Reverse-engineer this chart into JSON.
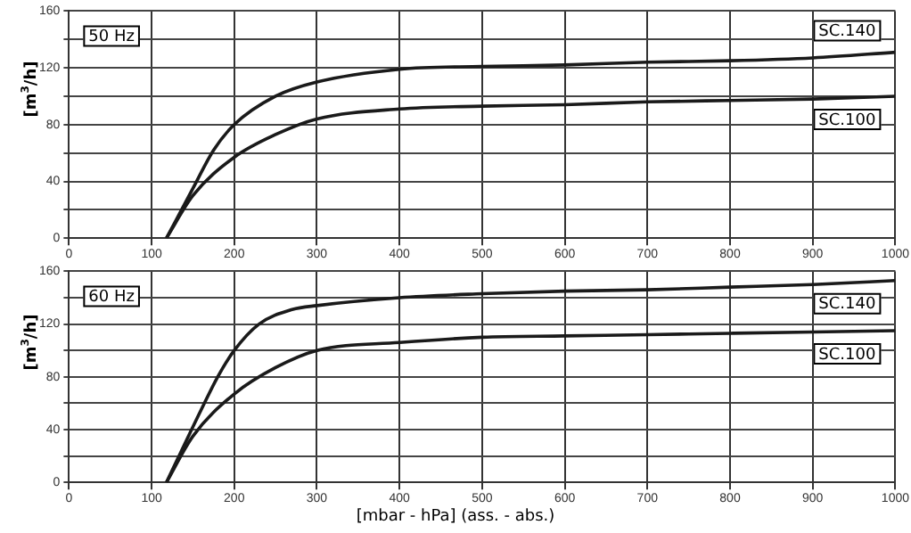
{
  "chart_data": [
    {
      "type": "line",
      "title": "50 Hz",
      "ylabel": "[m$^{3}$/h]",
      "xlim": [
        0,
        1000
      ],
      "xticks": [
        0,
        100,
        200,
        300,
        400,
        500,
        600,
        700,
        800,
        900,
        1000
      ],
      "ylim": [
        0,
        160
      ],
      "yticks": [
        0,
        {
          "value": 20,
          "label": null
        },
        40,
        {
          "value": 60,
          "label": null
        },
        80,
        {
          "value": 100,
          "label": null
        },
        120,
        {
          "value": 140,
          "label": null
        },
        160
      ],
      "grid": true,
      "legend": false,
      "marker": "none",
      "line_style": "solid",
      "series": [
        {
          "name": "SC.140",
          "color": "#1a1a1a",
          "x": [
            118,
            150,
            175,
            200,
            250,
            300,
            400,
            500,
            600,
            700,
            800,
            900,
            1000
          ],
          "values": [
            0,
            35,
            62,
            80,
            100,
            110,
            119,
            121,
            122,
            124,
            125,
            127,
            131
          ]
        },
        {
          "name": "SC.100",
          "color": "#1a1a1a",
          "x": [
            118,
            150,
            200,
            250,
            300,
            400,
            500,
            600,
            700,
            800,
            900,
            1000
          ],
          "values": [
            0,
            30,
            57,
            73,
            84,
            91,
            93,
            94,
            96,
            97,
            98,
            100
          ]
        }
      ]
    },
    {
      "type": "line",
      "title": "60 Hz",
      "ylabel": "[m$^{3}$/h]",
      "xlabel": "[mbar - hPa] (ass. - abs.)",
      "xlim": [
        0,
        1000
      ],
      "xticks": [
        0,
        100,
        200,
        300,
        400,
        500,
        600,
        700,
        800,
        900,
        1000
      ],
      "ylim": [
        0,
        160
      ],
      "yticks": [
        0,
        {
          "value": 20,
          "label": null
        },
        40,
        {
          "value": 60,
          "label": null
        },
        80,
        {
          "value": 100,
          "label": null
        },
        120,
        {
          "value": 140,
          "label": null
        },
        160
      ],
      "grid": true,
      "legend": false,
      "marker": "none",
      "line_style": "solid",
      "series": [
        {
          "name": "SC.140",
          "color": "#1a1a1a",
          "x": [
            118,
            160,
            180,
            200,
            230,
            270,
            300,
            400,
            500,
            600,
            700,
            800,
            900,
            1000
          ],
          "values": [
            0,
            55,
            80,
            100,
            120,
            131,
            134,
            140,
            143,
            145,
            146,
            148,
            150,
            153
          ]
        },
        {
          "name": "SC.100",
          "color": "#1a1a1a",
          "x": [
            118,
            150,
            200,
            250,
            300,
            400,
            500,
            600,
            700,
            800,
            900,
            1000
          ],
          "values": [
            0,
            35,
            67,
            87,
            100,
            106,
            110,
            111,
            112,
            113,
            114,
            115
          ]
        }
      ]
    }
  ]
}
